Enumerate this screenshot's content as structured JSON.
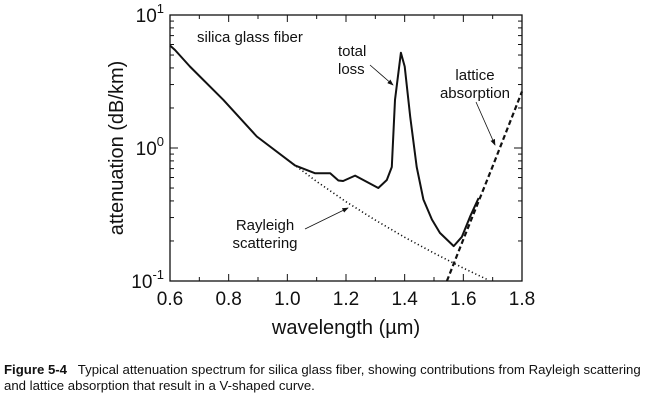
{
  "chart_data": {
    "type": "line",
    "xlabel": "wavelength (µm)",
    "ylabel": "attenuation (dB/km)",
    "xlim": [
      0.6,
      1.8
    ],
    "ylim": [
      0.1,
      10
    ],
    "yscale": "log",
    "xticks": [
      "0.6",
      "0.8",
      "1.0",
      "1.2",
      "1.4",
      "1.6",
      "1.8"
    ],
    "yticks": [
      {
        "value": 0.1,
        "base": "10",
        "exp": "-1"
      },
      {
        "value": 1,
        "base": "10",
        "exp": "0"
      },
      {
        "value": 10,
        "base": "10",
        "exp": "1"
      }
    ],
    "grid": false,
    "series": [
      {
        "key": "total",
        "style": "solid",
        "x": [
          0.6,
          0.617,
          0.668,
          0.782,
          0.896,
          1.026,
          1.095,
          1.146,
          1.174,
          1.19,
          1.231,
          1.282,
          1.31,
          1.339,
          1.356,
          1.367,
          1.387,
          1.4,
          1.419,
          1.441,
          1.464,
          1.493,
          1.52,
          1.567,
          1.595,
          1.623,
          1.652
        ],
        "y": [
          5.9,
          5.46,
          4.1,
          2.3,
          1.22,
          0.74,
          0.645,
          0.645,
          0.57,
          0.565,
          0.62,
          0.54,
          0.5,
          0.575,
          0.72,
          2.3,
          5.2,
          4.1,
          1.72,
          0.72,
          0.41,
          0.29,
          0.23,
          0.183,
          0.215,
          0.305,
          0.42
        ]
      },
      {
        "key": "rayleigh",
        "style": "dotted",
        "x": [
          1.0,
          1.1,
          1.2,
          1.3,
          1.4,
          1.5,
          1.6,
          1.68
        ],
        "y": [
          0.82,
          0.56,
          0.395,
          0.287,
          0.213,
          0.162,
          0.125,
          0.103
        ]
      },
      {
        "key": "lattice",
        "style": "dashed",
        "x": [
          1.544,
          1.6,
          1.7,
          1.8
        ],
        "y": [
          0.1,
          0.205,
          0.73,
          2.66
        ]
      }
    ],
    "annotations": [
      {
        "text": "silica glass fiber"
      },
      {
        "text": [
          "total",
          "loss"
        ]
      },
      {
        "text": [
          "lattice",
          "absorption"
        ]
      },
      {
        "text": [
          "Rayleigh",
          "scattering"
        ]
      }
    ]
  },
  "caption": {
    "label": "Figure 5-4",
    "text": "Typical attenuation spectrum for silica glass fiber, showing contributions from Rayleigh scattering and lattice absorption that result in a V-shaped curve."
  }
}
